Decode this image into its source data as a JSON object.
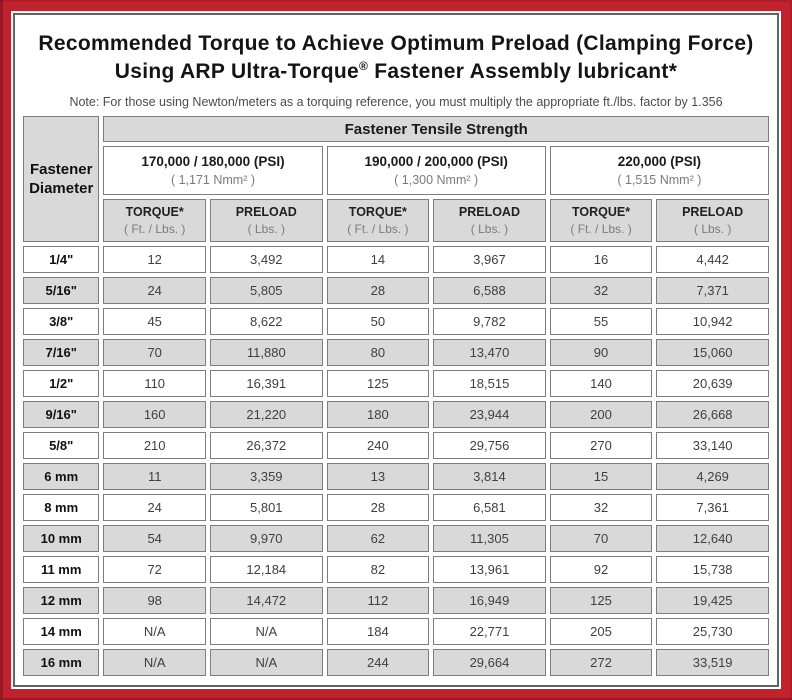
{
  "title": {
    "line1": "Recommended Torque to Achieve Optimum Preload (Clamping Force)",
    "line2_before": "Using ARP Ultra-Torque",
    "registered_mark": "®",
    "line2_after": " Fastener Assembly lubricant*"
  },
  "note": "Note: For those using Newton/meters as a torquing reference, you must multiply the appropriate ft./lbs. factor by 1.356",
  "table": {
    "corner_header": {
      "line1": "Fastener",
      "line2": "Diameter"
    },
    "tensile_strength_header": "Fastener Tensile Strength",
    "strength_groups": [
      {
        "psi": "170,000 / 180,000 (PSI)",
        "nmm": "( 1,171 Nmm² )"
      },
      {
        "psi": "190,000 / 200,000 (PSI)",
        "nmm": "( 1,300 Nmm² )"
      },
      {
        "psi": "220,000 (PSI)",
        "nmm": "( 1,515 Nmm² )"
      }
    ],
    "column_headers": {
      "torque": "TORQUE*",
      "torque_units": "( Ft. / Lbs. )",
      "preload": "PRELOAD",
      "preload_units": "( Lbs. )"
    },
    "rows": [
      {
        "diameter": "1/4\"",
        "values": [
          "12",
          "3,492",
          "14",
          "3,967",
          "16",
          "4,442"
        ]
      },
      {
        "diameter": "5/16\"",
        "values": [
          "24",
          "5,805",
          "28",
          "6,588",
          "32",
          "7,371"
        ]
      },
      {
        "diameter": "3/8\"",
        "values": [
          "45",
          "8,622",
          "50",
          "9,782",
          "55",
          "10,942"
        ]
      },
      {
        "diameter": "7/16\"",
        "values": [
          "70",
          "11,880",
          "80",
          "13,470",
          "90",
          "15,060"
        ]
      },
      {
        "diameter": "1/2\"",
        "values": [
          "110",
          "16,391",
          "125",
          "18,515",
          "140",
          "20,639"
        ]
      },
      {
        "diameter": "9/16\"",
        "values": [
          "160",
          "21,220",
          "180",
          "23,944",
          "200",
          "26,668"
        ]
      },
      {
        "diameter": "5/8\"",
        "values": [
          "210",
          "26,372",
          "240",
          "29,756",
          "270",
          "33,140"
        ]
      },
      {
        "diameter": "6 mm",
        "values": [
          "11",
          "3,359",
          "13",
          "3,814",
          "15",
          "4,269"
        ]
      },
      {
        "diameter": "8 mm",
        "values": [
          "24",
          "5,801",
          "28",
          "6,581",
          "32",
          "7,361"
        ]
      },
      {
        "diameter": "10 mm",
        "values": [
          "54",
          "9,970",
          "62",
          "11,305",
          "70",
          "12,640"
        ]
      },
      {
        "diameter": "11 mm",
        "values": [
          "72",
          "12,184",
          "82",
          "13,961",
          "92",
          "15,738"
        ]
      },
      {
        "diameter": "12 mm",
        "values": [
          "98",
          "14,472",
          "112",
          "16,949",
          "125",
          "19,425"
        ]
      },
      {
        "diameter": "14 mm",
        "values": [
          "N/A",
          "N/A",
          "184",
          "22,771",
          "205",
          "25,730"
        ]
      },
      {
        "diameter": "16 mm",
        "values": [
          "N/A",
          "N/A",
          "244",
          "29,664",
          "272",
          "33,519"
        ]
      }
    ]
  },
  "colors": {
    "frame_red": "#c2212e",
    "cell_gray": "#d9d9d9",
    "cell_border": "#7d7d7d",
    "muted_text": "#7b7b7b"
  }
}
